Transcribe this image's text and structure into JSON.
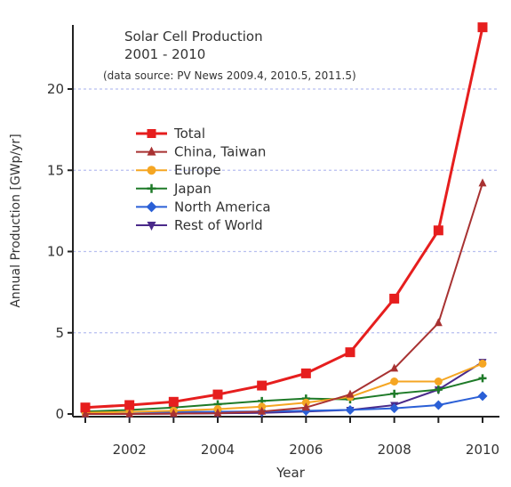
{
  "chart_data": {
    "type": "line",
    "title": "Solar Cell Production",
    "subtitle": "2001 - 2010",
    "note": "(data source: PV News 2009.4, 2010.5, 2011.5)",
    "xlabel": "Year",
    "ylabel": "Annual Production [GWp/yr]",
    "xlim": [
      2001,
      2010
    ],
    "ylim": [
      0,
      24
    ],
    "xticks": [
      2002,
      2004,
      2006,
      2008,
      2010
    ],
    "yticks": [
      0,
      5,
      10,
      15,
      20
    ],
    "grid": "horizontal dashed",
    "legend_position": "upper-left",
    "x": [
      2001,
      2002,
      2003,
      2004,
      2005,
      2006,
      2007,
      2008,
      2009,
      2010
    ],
    "series": [
      {
        "name": "Total",
        "color": "#e61e1e",
        "marker": "square",
        "values": [
          0.4,
          0.55,
          0.75,
          1.2,
          1.75,
          2.5,
          3.8,
          7.1,
          11.3,
          23.8
        ]
      },
      {
        "name": "China, Taiwan",
        "color": "#a83232",
        "marker": "triangle-up",
        "values": [
          0.0,
          0.0,
          0.02,
          0.05,
          0.15,
          0.4,
          1.2,
          2.8,
          5.6,
          14.2
        ]
      },
      {
        "name": "Europe",
        "color": "#f5a623",
        "marker": "circle",
        "values": [
          0.08,
          0.13,
          0.2,
          0.3,
          0.45,
          0.7,
          1.05,
          2.0,
          2.0,
          3.1
        ]
      },
      {
        "name": "Japan",
        "color": "#1e7a28",
        "marker": "plus",
        "values": [
          0.15,
          0.25,
          0.4,
          0.6,
          0.8,
          0.95,
          0.9,
          1.25,
          1.5,
          2.2
        ]
      },
      {
        "name": "North America",
        "color": "#2a5fd6",
        "marker": "diamond",
        "values": [
          0.1,
          0.12,
          0.12,
          0.14,
          0.15,
          0.2,
          0.25,
          0.35,
          0.55,
          1.1
        ]
      },
      {
        "name": "Rest of World",
        "color": "#4a2a8a",
        "marker": "triangle-down",
        "values": [
          0.0,
          0.01,
          0.02,
          0.04,
          0.07,
          0.15,
          0.25,
          0.55,
          1.5,
          3.2
        ]
      }
    ]
  }
}
